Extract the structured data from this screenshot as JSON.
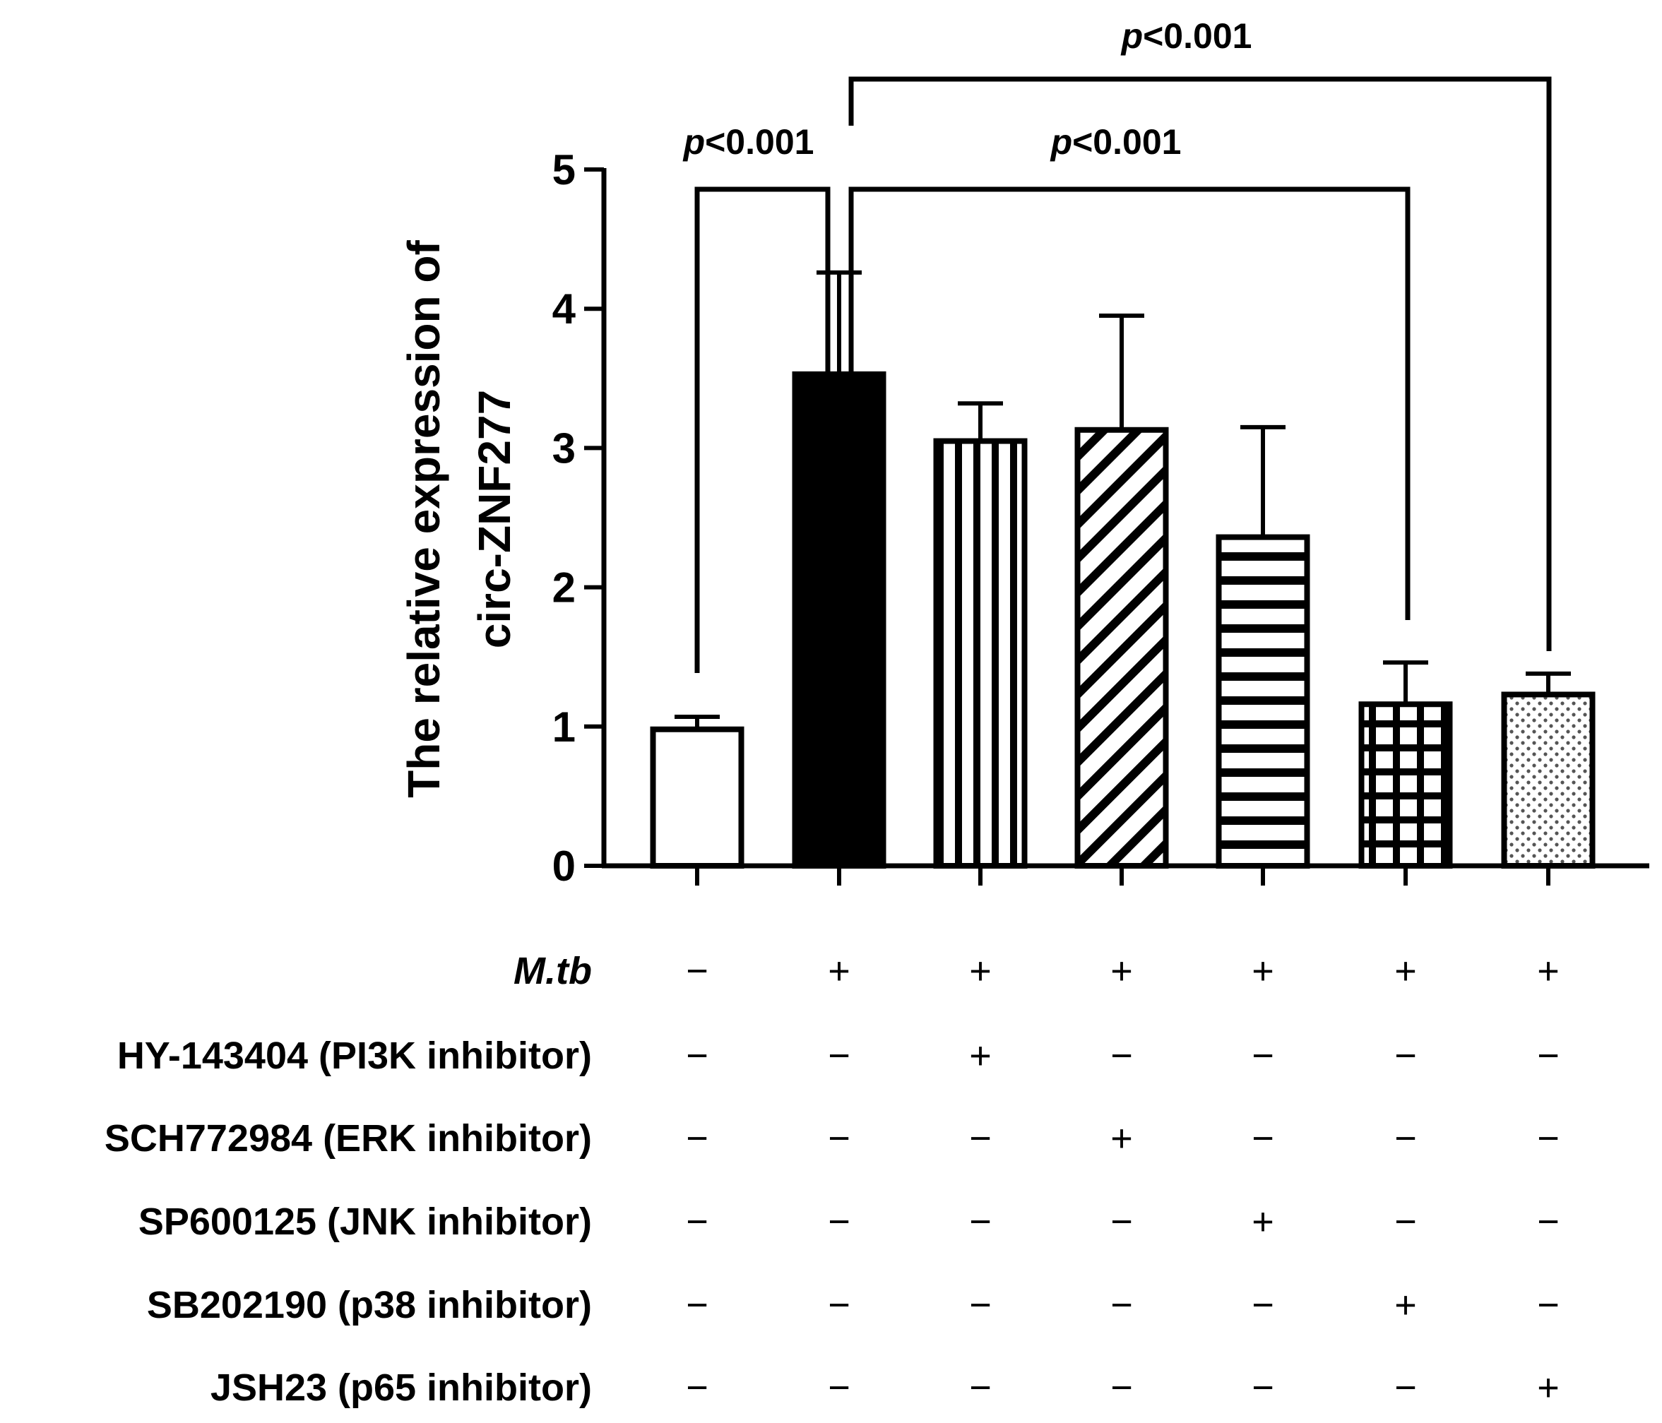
{
  "chart_data": {
    "type": "bar",
    "ylabel": [
      "The relative expression of",
      "circ-ZNF277"
    ],
    "ylim": [
      0,
      5
    ],
    "yticks": [
      0,
      1,
      2,
      3,
      4,
      5
    ],
    "series": [
      {
        "values": [
          0.98,
          3.53,
          3.05,
          3.13,
          2.36,
          1.16,
          1.23
        ],
        "errors": [
          0.09,
          0.73,
          0.27,
          0.82,
          0.79,
          0.3,
          0.15
        ],
        "patterns": [
          "empty",
          "solid",
          "vertical",
          "diagonal",
          "horizontal",
          "grid",
          "dots"
        ]
      }
    ],
    "significance": [
      {
        "from": 0,
        "to": 1,
        "label": "p<0.001"
      },
      {
        "from": 1,
        "to": 5,
        "label": "p<0.001"
      },
      {
        "from": 1,
        "to": 6,
        "label": "p<0.001"
      }
    ],
    "treatment_rows": [
      {
        "label": "M.tb",
        "italic": true,
        "signs": [
          "−",
          "+",
          "+",
          "+",
          "+",
          "+",
          "+"
        ]
      },
      {
        "label": "HY-143404 (PI3K inhibitor)",
        "signs": [
          "−",
          "−",
          "+",
          "−",
          "−",
          "−",
          "−"
        ]
      },
      {
        "label": "SCH772984 (ERK inhibitor)",
        "signs": [
          "−",
          "−",
          "−",
          "+",
          "−",
          "−",
          "−"
        ]
      },
      {
        "label": "SP600125 (JNK inhibitor)",
        "signs": [
          "−",
          "−",
          "−",
          "−",
          "+",
          "−",
          "−"
        ]
      },
      {
        "label": "SB202190 (p38 inhibitor)",
        "signs": [
          "−",
          "−",
          "−",
          "−",
          "−",
          "+",
          "−"
        ]
      },
      {
        "label": "JSH23 (p65 inhibitor)",
        "signs": [
          "−",
          "−",
          "−",
          "−",
          "−",
          "−",
          "+"
        ]
      }
    ]
  }
}
